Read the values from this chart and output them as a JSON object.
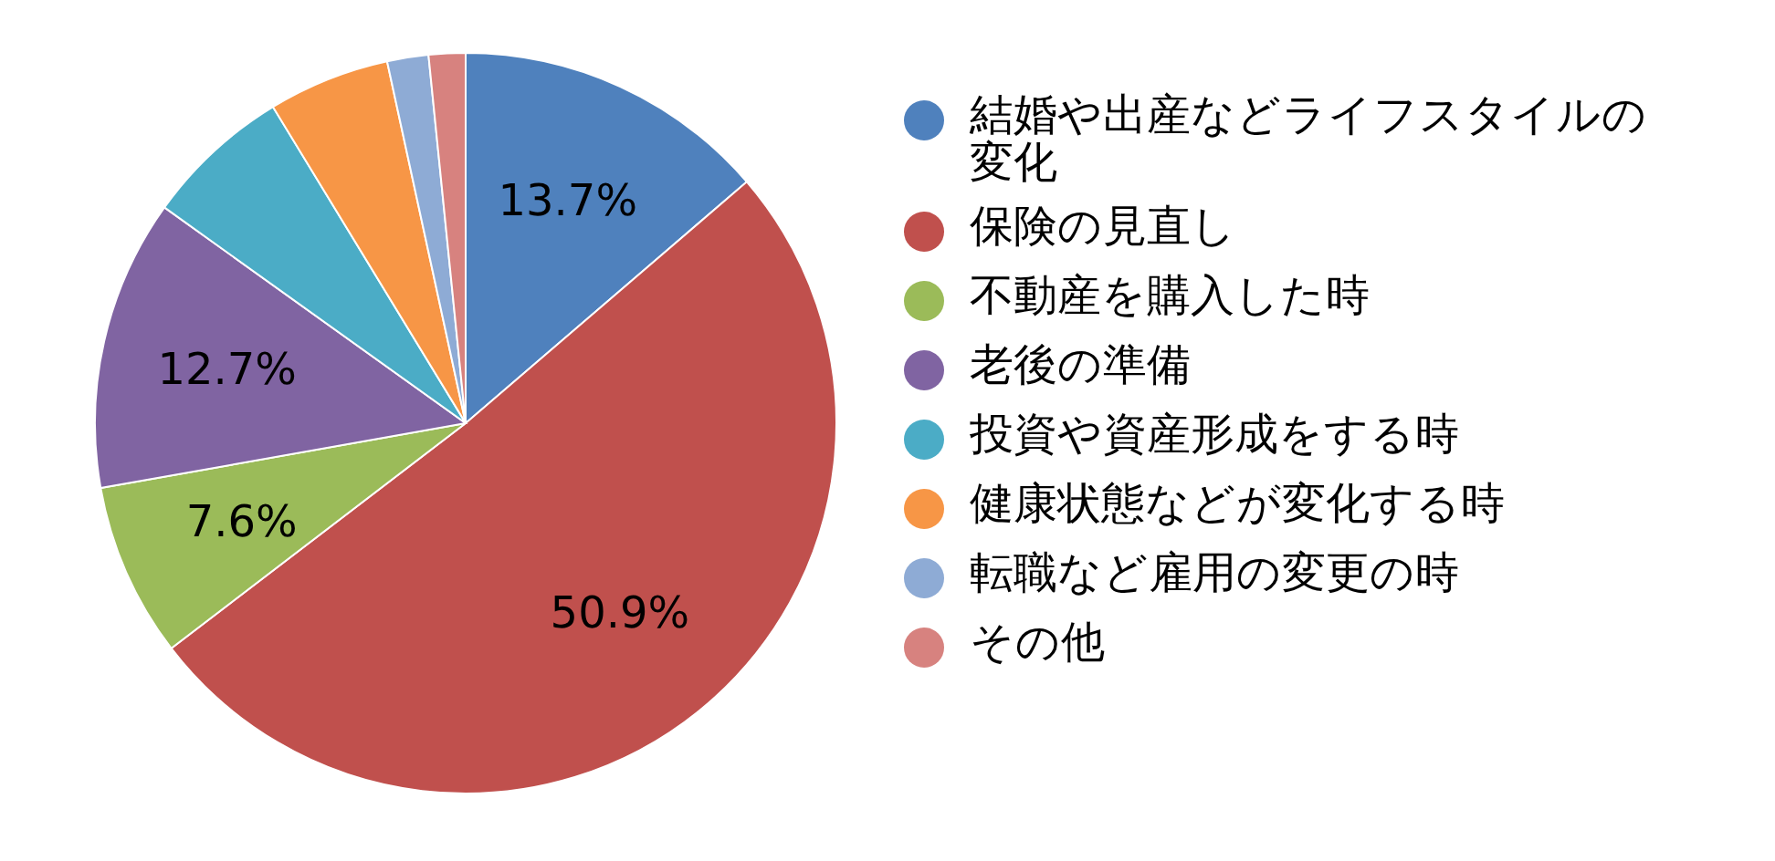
{
  "chart_data": {
    "type": "pie",
    "categories": [
      "結婚や出産などライフスタイルの変化",
      "保険の見直し",
      "不動産を購入した時",
      "老後の準備",
      "投資や資産形成をする時",
      "健康状態などが変化する時",
      "転職など雇用の変更の時",
      "その他"
    ],
    "values": [
      13.7,
      50.9,
      7.6,
      12.7,
      6.4,
      5.3,
      1.8,
      1.6
    ],
    "value_labels": [
      "13.7%",
      "50.9%",
      "7.6%",
      "12.7%",
      null,
      null,
      null,
      null
    ],
    "colors": [
      "#4f81bd",
      "#c0504d",
      "#9bbb59",
      "#8064a2",
      "#4bacc6",
      "#f79646",
      "#8eabd5",
      "#d7827f"
    ],
    "legend": "right"
  }
}
